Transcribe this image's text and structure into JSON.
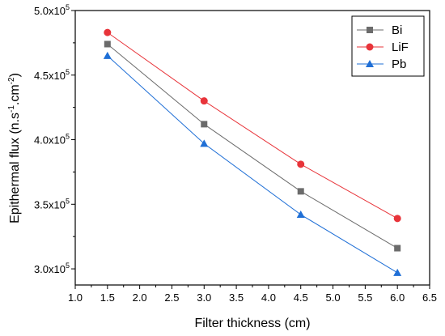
{
  "chart_data": {
    "type": "line",
    "title": "",
    "xlabel": "Filter thickness (cm)",
    "ylabel_main": "Epithermal flux (n.s",
    "ylabel_sup1": "-1",
    "ylabel_mid": ".cm",
    "ylabel_sup2": "-2",
    "ylabel_end": ")",
    "xlim": [
      1.0,
      6.5
    ],
    "ylim": [
      2.875,
      5.0
    ],
    "x_ticks": [
      "1.0",
      "1.5",
      "2.0",
      "2.5",
      "3.0",
      "3.5",
      "4.0",
      "4.5",
      "5.0",
      "5.5",
      "6.0",
      "6.5"
    ],
    "y_ticks": [
      {
        "mantissa": "3.0x10",
        "exp": "5",
        "value": 3.0
      },
      {
        "mantissa": "3.5x10",
        "exp": "5",
        "value": 3.5
      },
      {
        "mantissa": "4.0x10",
        "exp": "5",
        "value": 4.0
      },
      {
        "mantissa": "4.5x10",
        "exp": "5",
        "value": 4.5
      },
      {
        "mantissa": "5.0x10",
        "exp": "5",
        "value": 5.0
      }
    ],
    "x": [
      1.5,
      3.0,
      4.5,
      6.0
    ],
    "series": [
      {
        "name": "Bi",
        "values": [
          4.74,
          4.12,
          3.6,
          3.16
        ],
        "color": "#6b6b6b",
        "marker": "square"
      },
      {
        "name": "LiF",
        "values": [
          4.83,
          4.3,
          3.81,
          3.39
        ],
        "color": "#e8343a",
        "marker": "circle"
      },
      {
        "name": "Pb",
        "values": [
          4.65,
          3.97,
          3.42,
          2.97
        ],
        "color": "#1f6fd6",
        "marker": "triangle"
      }
    ],
    "legend_position": "top-right",
    "grid": false
  }
}
